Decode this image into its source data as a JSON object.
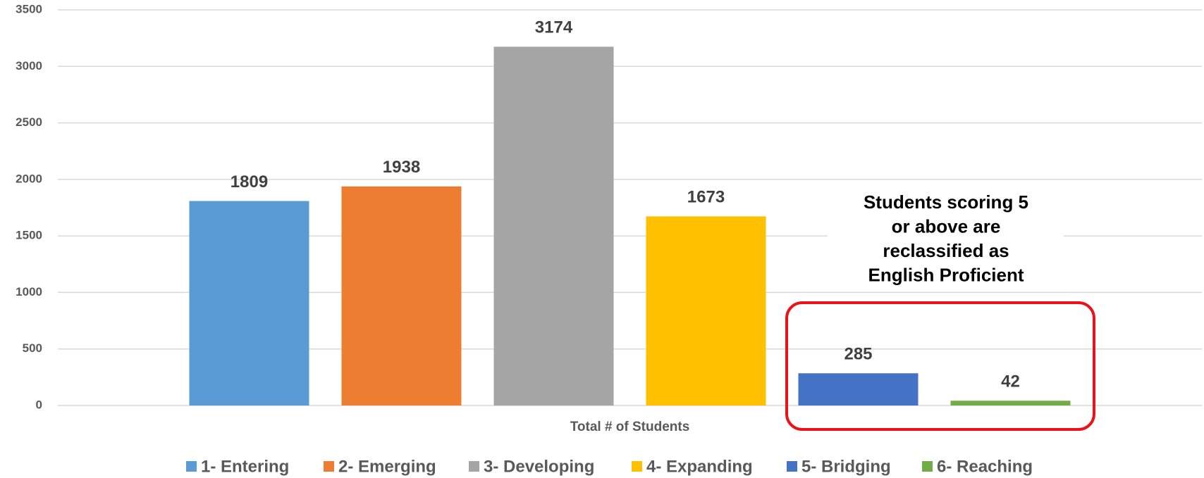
{
  "chart_data": {
    "type": "bar",
    "categories": [
      "Total  # of Students"
    ],
    "series": [
      {
        "name": "1- Entering",
        "color": "#5b9bd5",
        "values": [
          1809
        ]
      },
      {
        "name": "2- Emerging",
        "color": "#ed7d31",
        "values": [
          1938
        ]
      },
      {
        "name": "3- Developing",
        "color": "#a5a5a5",
        "values": [
          3174
        ]
      },
      {
        "name": "4- Expanding",
        "color": "#ffc000",
        "values": [
          1673
        ]
      },
      {
        "name": "5- Bridging",
        "color": "#4472c4",
        "values": [
          285
        ]
      },
      {
        "name": "6- Reaching",
        "color": "#70ad47",
        "values": [
          42
        ]
      }
    ],
    "ylim": [
      0,
      3500
    ],
    "yticks": [
      0,
      500,
      1000,
      1500,
      2000,
      2500,
      3000,
      3500
    ],
    "grid": true,
    "legend": "bottom",
    "annotation": [
      "Students scoring 5",
      "or above are",
      "reclassified as",
      "English Proficient"
    ]
  }
}
